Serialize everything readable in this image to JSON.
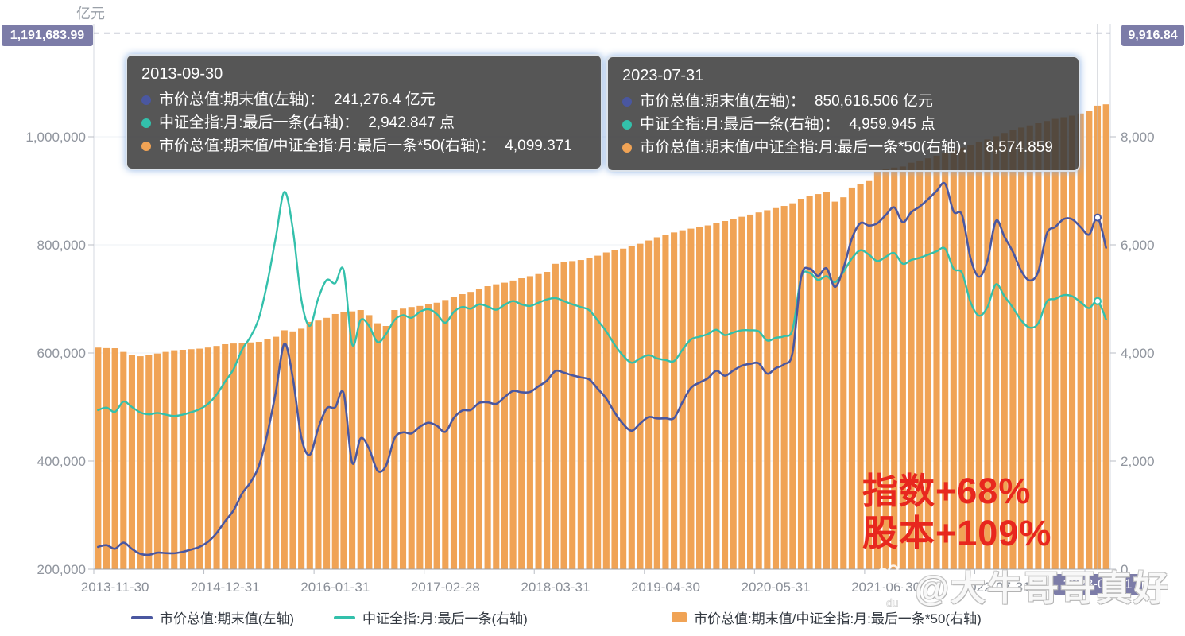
{
  "unit_label": "亿元",
  "axis_badges": {
    "left": "1,191,683.99",
    "right": "9,916.84"
  },
  "x_axis_pointer_label": "2023-08-31",
  "annotation": {
    "line1": "指数+68%",
    "line2": "股本+109%",
    "color": "#e8271e"
  },
  "watermark": {
    "text": "@大牛哥哥真好",
    "paw_label": "du"
  },
  "tooltips": [
    {
      "date": "2013-09-30",
      "rows": [
        {
          "label": "市价总值:期末值(左轴)：",
          "value": "241,276.4 亿元"
        },
        {
          "label": "中证全指:月:最后一条(右轴)：",
          "value": "2,942.847 点"
        },
        {
          "label": "市价总值:期末值/中证全指:月:最后一条*50(右轴)：",
          "value": "4,099.371"
        }
      ]
    },
    {
      "date": "2023-07-31",
      "rows": [
        {
          "label": "市价总值:期末值(左轴)：",
          "value": "850,616.506 亿元"
        },
        {
          "label": "中证全指:月:最后一条(右轴)：",
          "value": "4,959.945 点"
        },
        {
          "label": "市价总值:期末值/中证全指:月:最后一条*50(右轴)：",
          "value": "8,574.859"
        }
      ]
    }
  ],
  "legend": {
    "items": [
      {
        "label": "市价总值:期末值(左轴)",
        "swatch": "line"
      },
      {
        "label": "中证全指:月:最后一条(右轴)",
        "swatch": "line"
      },
      {
        "label": "市价总值:期末值/中证全指:月:最后一条*50(右轴)",
        "swatch": "rect"
      }
    ]
  },
  "chart_data": {
    "type": "bar+line, dual y-axis, monthly categories",
    "x_monthly_range": [
      "2013-09-30",
      "2023-08-31"
    ],
    "x_tick_labels": [
      "2013-11-30",
      "2014-12-31",
      "2016-01-31",
      "2017-02-28",
      "2018-03-31",
      "2019-04-30",
      "2020-05-31",
      "2021-06-30",
      "2022-07-31",
      "2023-08-31"
    ],
    "left_axis": {
      "tick_labels": [
        "1,000,000",
        "800,000",
        "600,000",
        "400,000",
        "200,000"
      ],
      "tick_values": [
        1000000,
        800000,
        600000,
        400000,
        200000
      ],
      "min": 200000
    },
    "right_axis": {
      "tick_labels": [
        "8,000",
        "6,000",
        "4,000",
        "2,000",
        "0"
      ],
      "tick_values": [
        8000,
        6000,
        4000,
        2000,
        0
      ],
      "min": 0
    },
    "max_line": {
      "left_value": 1191683.99,
      "right_value": 9916.84,
      "style": "dashed"
    },
    "grid": "faint horizontal lines",
    "legend_position": "bottom",
    "series": [
      {
        "name": "市价总值:期末值(左轴)",
        "type": "line",
        "axis": "left",
        "color": "#4a57a0",
        "values": [
          241276.4,
          244582,
          237900,
          249240,
          237600,
          228520,
          226700,
          230600,
          229900,
          229600,
          232175,
          236467,
          241500,
          250920,
          266800,
          288800,
          308950,
          339800,
          360800,
          391200,
          451350,
          528900,
          617000,
          553500,
          444100,
          411700,
          460900,
          497600,
          499500,
          525350,
          396900,
          442000,
          423000,
          382200,
          391500,
          442000,
          453100,
          451050,
          463600,
          471100,
          465400,
          454200,
          479800,
          493500,
          494500,
          507600,
          508800,
          505900,
          518300,
          529700,
          527400,
          527900,
          538400,
          548900,
          566700,
          563500,
          558600,
          554800,
          550900,
          533600,
          515700,
          489700,
          468500,
          456200,
          469600,
          481500,
          478900,
          479200,
          479700,
          509100,
          535500,
          545100,
          553300,
          567000,
          557800,
          567600,
          576400,
          579900,
          580800,
          561700,
          571800,
          579300,
          601200,
          740100,
          756200,
          742600,
          756600,
          722200,
          756800,
          811900,
          840200,
          835800,
          840000,
          855400,
          869300,
          841900,
          860300,
          870900,
          884600,
          899600,
          913200,
          861800,
          854900,
          775600,
          741000,
          771200,
          844300,
          815100,
          787000,
          751600,
          734000,
          750800,
          820700,
          833000,
          847700,
          847400,
          832900,
          819200,
          850616.506,
          794600
        ]
      },
      {
        "name": "中证全指:月:最后一条(右轴)",
        "type": "line",
        "axis": "right",
        "color": "#33c0ab",
        "values": [
          2942.847,
          2990,
          2910,
          3100,
          3000,
          2900,
          2865,
          2890,
          2860,
          2835,
          2860,
          2905,
          2960,
          3060,
          3230,
          3470,
          3700,
          4060,
          4300,
          4650,
          5310,
          6150,
          6980,
          6290,
          4990,
          4500,
          5010,
          5350,
          5290,
          5530,
          4160,
          4610,
          4500,
          4200,
          4350,
          4610,
          4700,
          4650,
          4760,
          4810,
          4720,
          4560,
          4760,
          4850,
          4820,
          4900,
          4860,
          4800,
          4890,
          4960,
          4900,
          4870,
          4930,
          4990,
          5015,
          4960,
          4900,
          4850,
          4790,
          4600,
          4400,
          4150,
          3950,
          3820,
          3900,
          3960,
          3900,
          3870,
          3850,
          4060,
          4250,
          4300,
          4350,
          4430,
          4330,
          4380,
          4420,
          4420,
          4400,
          4230,
          4280,
          4310,
          4440,
          5400,
          5480,
          5350,
          5420,
          5310,
          5500,
          5750,
          5900,
          5820,
          5700,
          5780,
          5850,
          5650,
          5720,
          5760,
          5820,
          5880,
          5930,
          5560,
          5480,
          4940,
          4690,
          4850,
          5270,
          5050,
          4840,
          4600,
          4470,
          4550,
          4950,
          5000,
          5070,
          5050,
          4940,
          4830,
          4959.945,
          4620
        ]
      },
      {
        "name": "市价总值:期末值/中证全指:月:最后一条*50(右轴)",
        "type": "bar",
        "axis": "right",
        "color": "#f0a355",
        "values": [
          4099.371,
          4090,
          4088,
          4020,
          3960,
          3940,
          3956,
          3990,
          4020,
          4050,
          4059,
          4070,
          4080,
          4100,
          4130,
          4162,
          4175,
          4185,
          4195,
          4206,
          4250,
          4300,
          4420,
          4400,
          4450,
          4574,
          4600,
          4650,
          4721,
          4750,
          4770,
          4794,
          4700,
          4550,
          4500,
          4794,
          4820,
          4850,
          4870,
          4897,
          4930,
          4980,
          5040,
          5088,
          5130,
          5180,
          5235,
          5270,
          5300,
          5340,
          5382,
          5420,
          5460,
          5500,
          5650,
          5680,
          5700,
          5720,
          5750,
          5800,
          5860,
          5900,
          5930,
          5971,
          6020,
          6080,
          6140,
          6191,
          6230,
          6270,
          6300,
          6338,
          6360,
          6400,
          6441,
          6480,
          6520,
          6560,
          6600,
          6640,
          6680,
          6720,
          6770,
          6853,
          6900,
          6940,
          6980,
          6800,
          6880,
          7060,
          7120,
          7180,
          7368,
          7400,
          7430,
          7450,
          7520,
          7560,
          7600,
          7650,
          7700,
          7750,
          7800,
          7850,
          7900,
          7950,
          8010,
          8070,
          8130,
          8170,
          8210,
          8250,
          8290,
          8330,
          8360,
          8390,
          8430,
          8480,
          8574.859,
          8600
        ]
      }
    ],
    "crosshair_index": 118,
    "end_markers": [
      {
        "series": 0,
        "index": 118
      },
      {
        "series": 1,
        "index": 118
      }
    ]
  }
}
